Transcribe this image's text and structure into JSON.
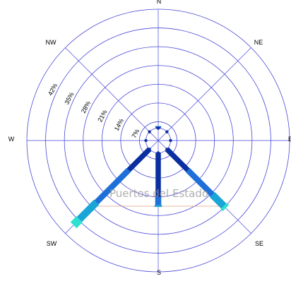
{
  "chart_data": {
    "type": "polar-rose",
    "title": "",
    "directions": [
      "N",
      "NE",
      "E",
      "SE",
      "S",
      "SW",
      "W",
      "NW"
    ],
    "ring_labels": [
      "7%",
      "14%",
      "21%",
      "28%",
      "35%",
      "42%"
    ],
    "rmax_percent": 49,
    "calm_percent": 2.5,
    "series": [
      {
        "color": "#0a2fa0",
        "values": [
          0.4,
          0,
          0,
          11.0,
          16.5,
          11.0,
          0,
          0
        ]
      },
      {
        "color": "#1f6fd8",
        "values": [
          0.3,
          0,
          0,
          13.0,
          3.0,
          17.0,
          0,
          0
        ]
      },
      {
        "color": "#19a6d6",
        "values": [
          0,
          0,
          0,
          6.0,
          0.6,
          9.0,
          0,
          0
        ]
      },
      {
        "color": "#2ee0d0",
        "values": [
          0,
          0,
          0,
          1.0,
          0,
          3.0,
          0,
          0
        ]
      }
    ],
    "grid": true,
    "watermark": "Puertos del Estado"
  },
  "labels": {
    "N": "N",
    "NE": "NE",
    "E": "E",
    "SE": "SE",
    "S": "S",
    "SW": "SW",
    "W": "W",
    "NW": "NW"
  }
}
